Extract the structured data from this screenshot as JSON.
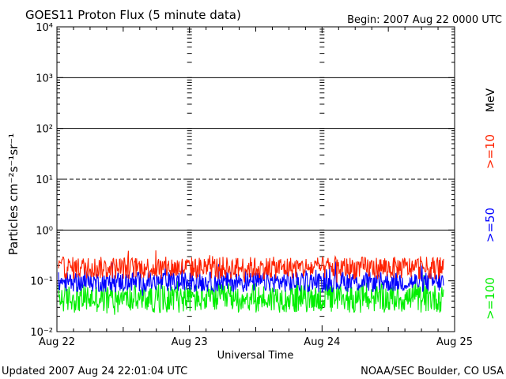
{
  "chart_data": {
    "type": "line",
    "title": "GOES11 Proton Flux (5 minute data)",
    "begin_label": "Begin: 2007 Aug 22 0000 UTC",
    "xlabel": "Universal Time",
    "ylabel": "Particles cm⁻²s⁻¹sr⁻¹",
    "y_scale": "log",
    "ylim": [
      0.01,
      10000
    ],
    "y_tick_labels": [
      "10⁻²",
      "10⁻¹",
      "10⁰",
      "10¹",
      "10²",
      "10³",
      "10⁴"
    ],
    "x_categories": [
      "Aug 22",
      "Aug 23",
      "Aug 24",
      "Aug 25"
    ],
    "energy_unit": "MeV",
    "reference_lines": [
      {
        "value": 10,
        "style": "dashed"
      },
      {
        "value": 100,
        "style": "solid"
      },
      {
        "value": 1000,
        "style": "solid"
      },
      {
        "value": 1,
        "style": "solid"
      }
    ],
    "series": [
      {
        "name": ">=10",
        "color": "#ff2200",
        "baseline": 0.18,
        "noise_decades": 0.22
      },
      {
        "name": ">=50",
        "color": "#0000ff",
        "baseline": 0.095,
        "noise_decades": 0.2
      },
      {
        "name": ">=100",
        "color": "#00ee00",
        "baseline": 0.045,
        "noise_decades": 0.28
      }
    ],
    "grid": false
  },
  "footer": {
    "updated": "Updated 2007 Aug 24 22:01:04 UTC",
    "source": "NOAA/SEC Boulder, CO USA"
  }
}
